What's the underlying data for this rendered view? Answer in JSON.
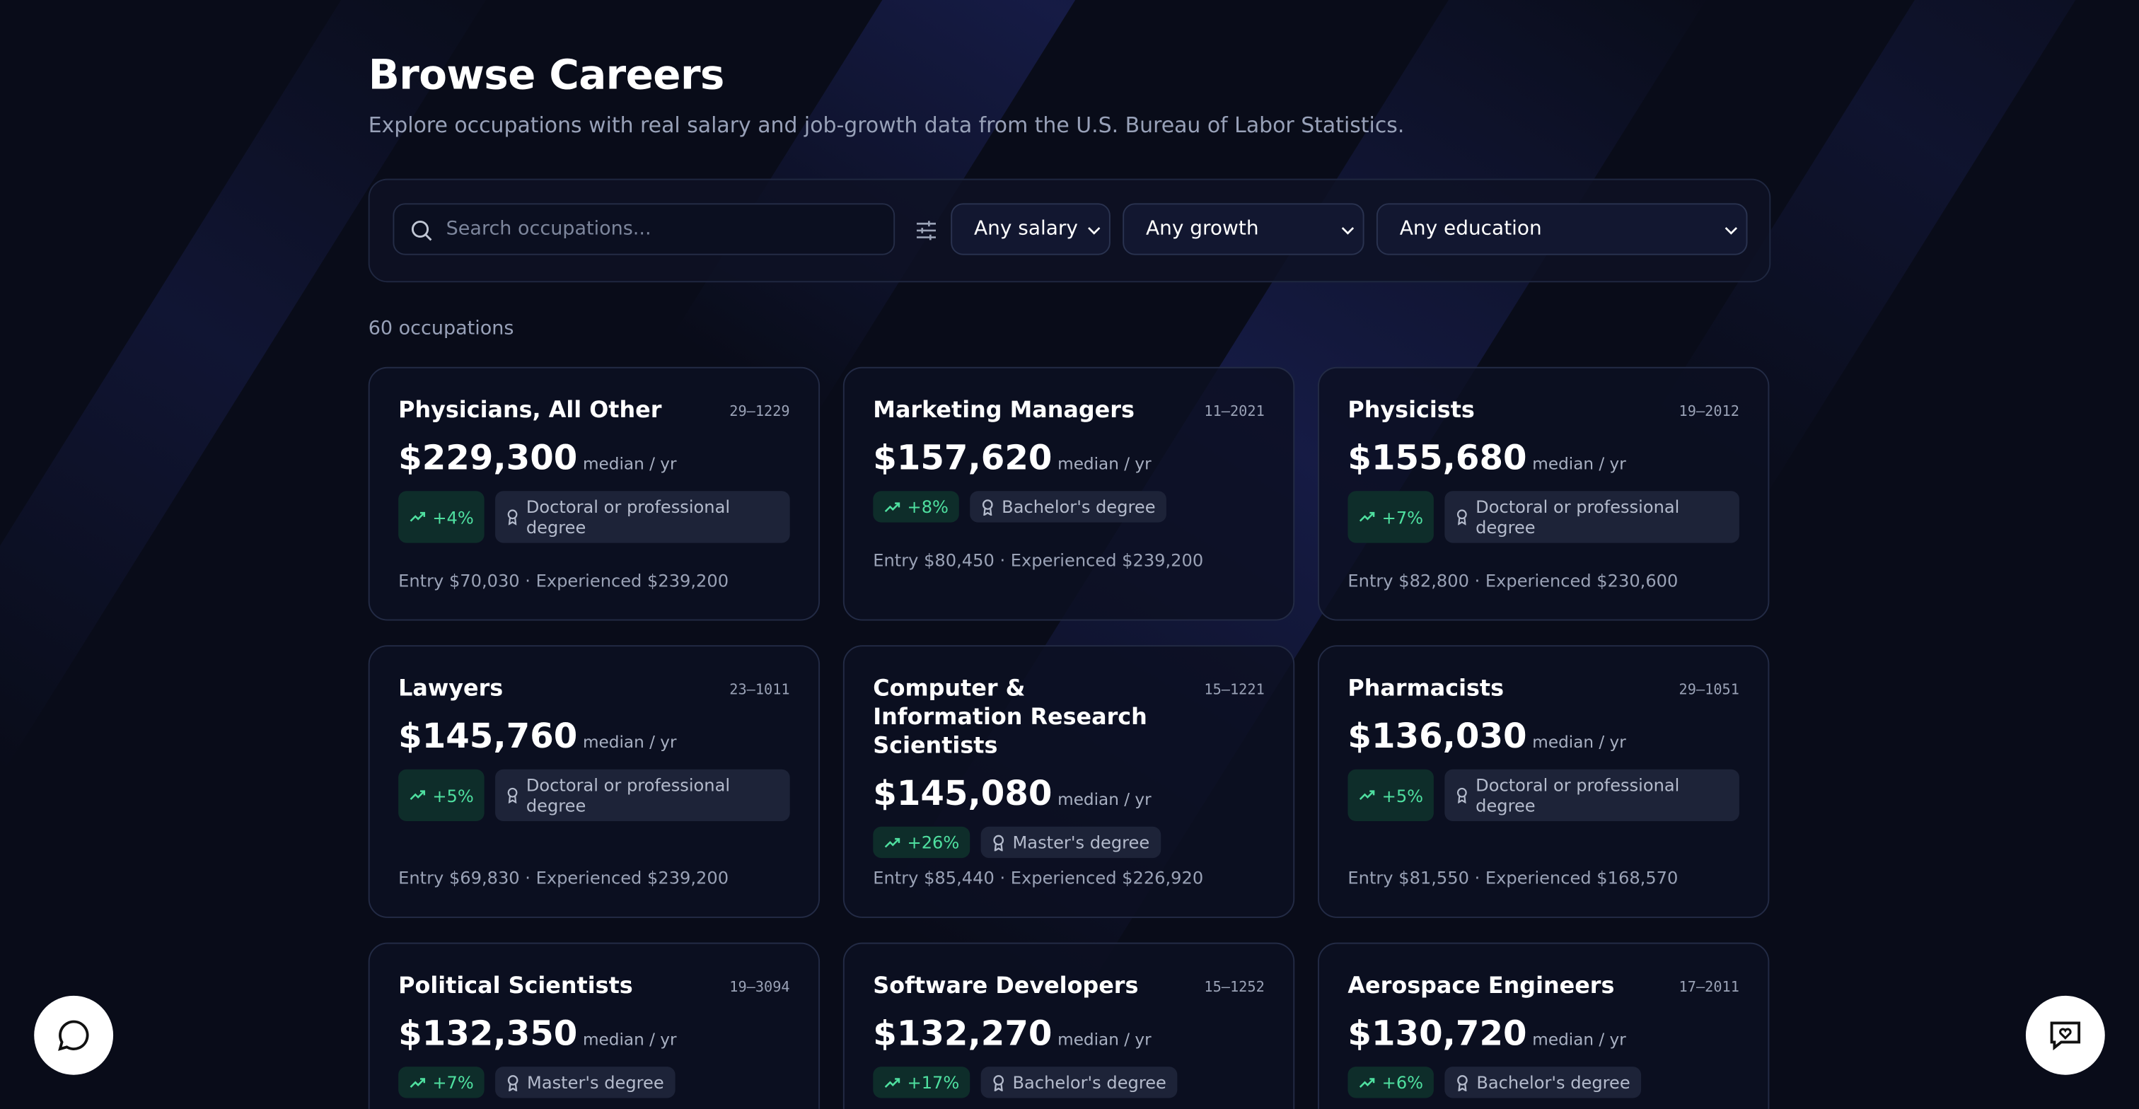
{
  "header": {
    "title": "Browse Careers",
    "subtitle": "Explore occupations with real salary and job-growth data from the U.S. Bureau of Labor Statistics."
  },
  "filters": {
    "search_placeholder": "Search occupations...",
    "salary": "Any salary",
    "growth": "Any growth",
    "education": "Any education"
  },
  "count": "60 occupations",
  "cards": [
    {
      "title": "Physicians, All Other",
      "code": "29–1229",
      "salary": "$229,300",
      "unit": "median / yr",
      "growth": "+4%",
      "education": "Doctoral or professional degree",
      "range": "Entry $70,030 · Experienced $239,200"
    },
    {
      "title": "Marketing Managers",
      "code": "11–2021",
      "salary": "$157,620",
      "unit": "median / yr",
      "growth": "+8%",
      "education": "Bachelor's degree",
      "range": "Entry $80,450 · Experienced $239,200"
    },
    {
      "title": "Physicists",
      "code": "19–2012",
      "salary": "$155,680",
      "unit": "median / yr",
      "growth": "+7%",
      "education": "Doctoral or professional degree",
      "range": "Entry $82,800 · Experienced $230,600"
    },
    {
      "title": "Lawyers",
      "code": "23–1011",
      "salary": "$145,760",
      "unit": "median / yr",
      "growth": "+5%",
      "education": "Doctoral or professional degree",
      "range": "Entry $69,830 · Experienced $239,200"
    },
    {
      "title": "Computer & Information Research Scientists",
      "code": "15–1221",
      "salary": "$145,080",
      "unit": "median / yr",
      "growth": "+26%",
      "education": "Master's degree",
      "range": "Entry $85,440 · Experienced $226,920"
    },
    {
      "title": "Pharmacists",
      "code": "29–1051",
      "salary": "$136,030",
      "unit": "median / yr",
      "growth": "+5%",
      "education": "Doctoral or professional degree",
      "range": "Entry $81,550 · Experienced $168,570"
    },
    {
      "title": "Political Scientists",
      "code": "19–3094",
      "salary": "$132,350",
      "unit": "median / yr",
      "growth": "+7%",
      "education": "Master's degree",
      "range": null
    },
    {
      "title": "Software Developers",
      "code": "15–1252",
      "salary": "$132,270",
      "unit": "median / yr",
      "growth": "+17%",
      "education": "Bachelor's degree",
      "range": null
    },
    {
      "title": "Aerospace Engineers",
      "code": "17–2011",
      "salary": "$130,720",
      "unit": "median / yr",
      "growth": "+6%",
      "education": "Bachelor's degree",
      "range": null
    }
  ]
}
